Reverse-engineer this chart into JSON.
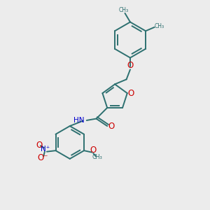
{
  "background_color": "#ececec",
  "bond_color": "#2d7070",
  "heteroatom_color_O": "#cc0000",
  "heteroatom_color_N": "#0000cc",
  "line_width": 1.4,
  "figsize": [
    3.0,
    3.0
  ],
  "dpi": 100,
  "xlim": [
    0,
    10
  ],
  "ylim": [
    0,
    10
  ]
}
